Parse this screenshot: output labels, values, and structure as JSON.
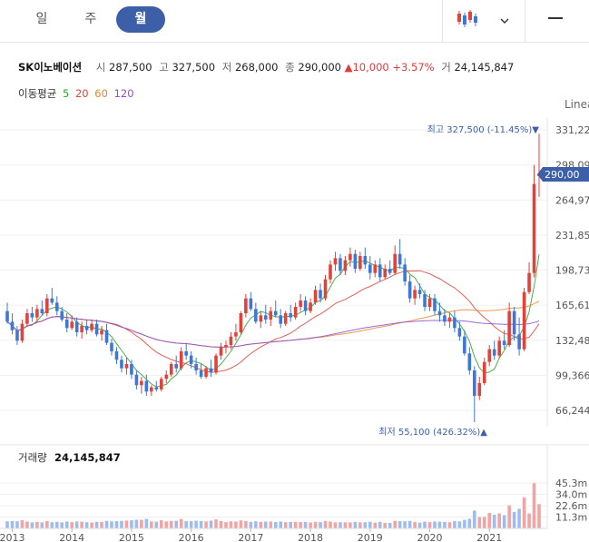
{
  "tabs": [
    {
      "label": "일",
      "active": false
    },
    {
      "label": "주",
      "active": false
    },
    {
      "label": "월",
      "active": true
    }
  ],
  "toolbar": {
    "chart_type_icon": "candlestick-icon",
    "dropdown_icon": "chevron-down-icon",
    "menu_icon": "hamburger-menu-icon"
  },
  "stock": {
    "name": "SK이노베이션",
    "open_label": "시",
    "open": "287,500",
    "high_label": "고",
    "high": "327,500",
    "low_label": "저",
    "low": "268,000",
    "close_label": "종",
    "close": "290,000",
    "change_arrow": "▲",
    "change": "10,000",
    "change_pct": "+3.57%",
    "volume_label": "거",
    "volume": "24,145,847"
  },
  "ma": {
    "label": "이동평균",
    "periods": [
      {
        "value": "5",
        "color": "#2e9e2e"
      },
      {
        "value": "20",
        "color": "#e0433a"
      },
      {
        "value": "60",
        "color": "#e8882c"
      },
      {
        "value": "120",
        "color": "#8a4fd6"
      }
    ]
  },
  "scale_mode": "Linea",
  "price_axis": {
    "ticks": [
      "331,22",
      "298,09",
      "264,97",
      "231,85",
      "198,73",
      "165,61",
      "132,48",
      "99,366",
      "66,244"
    ],
    "current_badge": "290,00"
  },
  "annotations": {
    "max": "최고 327,500 (-11.45%)▼",
    "min": "최저 55,100 (426.32%)▲"
  },
  "volume_panel": {
    "label": "거래량",
    "value": "24,145,847",
    "ticks": [
      "45.3m",
      "34.0m",
      "22.6m",
      "11.3m"
    ]
  },
  "x_axis": {
    "years": [
      "2013",
      "2014",
      "2015",
      "2016",
      "2017",
      "2018",
      "2019",
      "2020",
      "2021"
    ]
  },
  "colors": {
    "up": "#e0433a",
    "down": "#3d78d8",
    "accent": "#3d5fa8"
  },
  "chart_data": {
    "type": "candlestick",
    "title": "SK이노베이션",
    "series_price": {
      "x_start": "2012-12",
      "interval": "month",
      "ohlc": [
        [
          160000,
          168000,
          148000,
          150000
        ],
        [
          150000,
          158000,
          138000,
          142000
        ],
        [
          142000,
          146000,
          128000,
          132000
        ],
        [
          132000,
          152000,
          130000,
          148000
        ],
        [
          148000,
          162000,
          145000,
          158000
        ],
        [
          158000,
          164000,
          150000,
          154000
        ],
        [
          154000,
          166000,
          150000,
          162000
        ],
        [
          162000,
          170000,
          156000,
          158000
        ],
        [
          158000,
          176000,
          155000,
          172000
        ],
        [
          172000,
          182000,
          166000,
          168000
        ],
        [
          168000,
          174000,
          156000,
          160000
        ],
        [
          160000,
          164000,
          150000,
          152000
        ],
        [
          152000,
          158000,
          140000,
          144000
        ],
        [
          144000,
          156000,
          142000,
          150000
        ],
        [
          150000,
          154000,
          136000,
          140000
        ],
        [
          140000,
          150000,
          134000,
          146000
        ],
        [
          146000,
          152000,
          138000,
          142000
        ],
        [
          142000,
          152000,
          140000,
          148000
        ],
        [
          148000,
          152000,
          136000,
          138000
        ],
        [
          138000,
          146000,
          132000,
          142000
        ],
        [
          142000,
          148000,
          128000,
          130000
        ],
        [
          130000,
          134000,
          118000,
          122000
        ],
        [
          122000,
          126000,
          110000,
          114000
        ],
        [
          114000,
          118000,
          102000,
          106000
        ],
        [
          106000,
          116000,
          100000,
          110000
        ],
        [
          110000,
          114000,
          96000,
          100000
        ],
        [
          100000,
          104000,
          86000,
          90000
        ],
        [
          90000,
          98000,
          82000,
          94000
        ],
        [
          94000,
          100000,
          80000,
          84000
        ],
        [
          84000,
          90000,
          80000,
          88000
        ],
        [
          88000,
          94000,
          84000,
          86000
        ],
        [
          86000,
          98000,
          84000,
          96000
        ],
        [
          96000,
          104000,
          92000,
          100000
        ],
        [
          100000,
          112000,
          98000,
          110000
        ],
        [
          110000,
          118000,
          102000,
          106000
        ],
        [
          106000,
          126000,
          104000,
          122000
        ],
        [
          122000,
          130000,
          114000,
          118000
        ],
        [
          118000,
          122000,
          106000,
          110000
        ],
        [
          110000,
          116000,
          100000,
          104000
        ],
        [
          104000,
          110000,
          96000,
          98000
        ],
        [
          98000,
          108000,
          96000,
          106000
        ],
        [
          106000,
          114000,
          98000,
          102000
        ],
        [
          102000,
          120000,
          100000,
          118000
        ],
        [
          118000,
          130000,
          114000,
          126000
        ],
        [
          126000,
          132000,
          120000,
          128000
        ],
        [
          128000,
          140000,
          124000,
          136000
        ],
        [
          136000,
          148000,
          132000,
          140000
        ],
        [
          140000,
          160000,
          138000,
          158000
        ],
        [
          158000,
          176000,
          154000,
          172000
        ],
        [
          172000,
          178000,
          160000,
          162000
        ],
        [
          162000,
          168000,
          148000,
          150000
        ],
        [
          150000,
          160000,
          144000,
          156000
        ],
        [
          156000,
          166000,
          148000,
          152000
        ],
        [
          152000,
          164000,
          146000,
          160000
        ],
        [
          160000,
          170000,
          154000,
          156000
        ],
        [
          156000,
          162000,
          144000,
          148000
        ],
        [
          148000,
          160000,
          146000,
          158000
        ],
        [
          158000,
          166000,
          150000,
          154000
        ],
        [
          154000,
          168000,
          152000,
          164000
        ],
        [
          164000,
          176000,
          160000,
          170000
        ],
        [
          170000,
          174000,
          156000,
          160000
        ],
        [
          160000,
          172000,
          158000,
          168000
        ],
        [
          168000,
          184000,
          166000,
          180000
        ],
        [
          180000,
          186000,
          168000,
          172000
        ],
        [
          172000,
          194000,
          170000,
          190000
        ],
        [
          190000,
          208000,
          186000,
          204000
        ],
        [
          204000,
          216000,
          198000,
          210000
        ],
        [
          210000,
          214000,
          194000,
          198000
        ],
        [
          198000,
          212000,
          194000,
          208000
        ],
        [
          208000,
          220000,
          202000,
          214000
        ],
        [
          214000,
          218000,
          196000,
          200000
        ],
        [
          200000,
          216000,
          198000,
          212000
        ],
        [
          212000,
          220000,
          200000,
          204000
        ],
        [
          204000,
          212000,
          190000,
          196000
        ],
        [
          196000,
          208000,
          192000,
          204000
        ],
        [
          204000,
          210000,
          188000,
          192000
        ],
        [
          192000,
          204000,
          190000,
          200000
        ],
        [
          200000,
          208000,
          194000,
          196000
        ],
        [
          196000,
          222000,
          194000,
          214000
        ],
        [
          214000,
          228000,
          200000,
          204000
        ],
        [
          204000,
          210000,
          184000,
          188000
        ],
        [
          188000,
          194000,
          168000,
          172000
        ],
        [
          172000,
          184000,
          166000,
          180000
        ],
        [
          180000,
          186000,
          172000,
          176000
        ],
        [
          176000,
          180000,
          160000,
          164000
        ],
        [
          164000,
          176000,
          160000,
          172000
        ],
        [
          172000,
          176000,
          156000,
          160000
        ],
        [
          160000,
          168000,
          150000,
          156000
        ],
        [
          156000,
          162000,
          146000,
          150000
        ],
        [
          150000,
          158000,
          144000,
          154000
        ],
        [
          154000,
          160000,
          140000,
          144000
        ],
        [
          144000,
          150000,
          132000,
          136000
        ],
        [
          136000,
          142000,
          118000,
          120000
        ],
        [
          120000,
          126000,
          100000,
          104000
        ],
        [
          104000,
          108000,
          55100,
          80000
        ],
        [
          80000,
          98000,
          76000,
          92000
        ],
        [
          92000,
          116000,
          90000,
          112000
        ],
        [
          112000,
          128000,
          108000,
          124000
        ],
        [
          124000,
          132000,
          114000,
          118000
        ],
        [
          118000,
          136000,
          116000,
          132000
        ],
        [
          132000,
          142000,
          124000,
          128000
        ],
        [
          128000,
          168000,
          126000,
          160000
        ],
        [
          160000,
          164000,
          132000,
          138000
        ],
        [
          138000,
          154000,
          118000,
          124000
        ],
        [
          124000,
          182000,
          122000,
          178000
        ],
        [
          178000,
          206000,
          176000,
          196000
        ],
        [
          196000,
          298000,
          192000,
          280000
        ],
        [
          287500,
          327500,
          268000,
          290000
        ]
      ]
    },
    "volume_unit": "m",
    "ylim_price": [
      55100,
      331220
    ],
    "ylim_volume": [
      0,
      56000000
    ],
    "x_tick_labels": [
      "2013",
      "2014",
      "2015",
      "2016",
      "2017",
      "2018",
      "2019",
      "2020",
      "2021"
    ],
    "moving_averages": [
      5,
      20,
      60,
      120
    ],
    "annotations": [
      {
        "text": "최고 327,500 (-11.45%)",
        "value": 327500
      },
      {
        "text": "최저 55,100 (426.32%)",
        "value": 55100
      }
    ],
    "last_price": 290000,
    "grid": true
  }
}
